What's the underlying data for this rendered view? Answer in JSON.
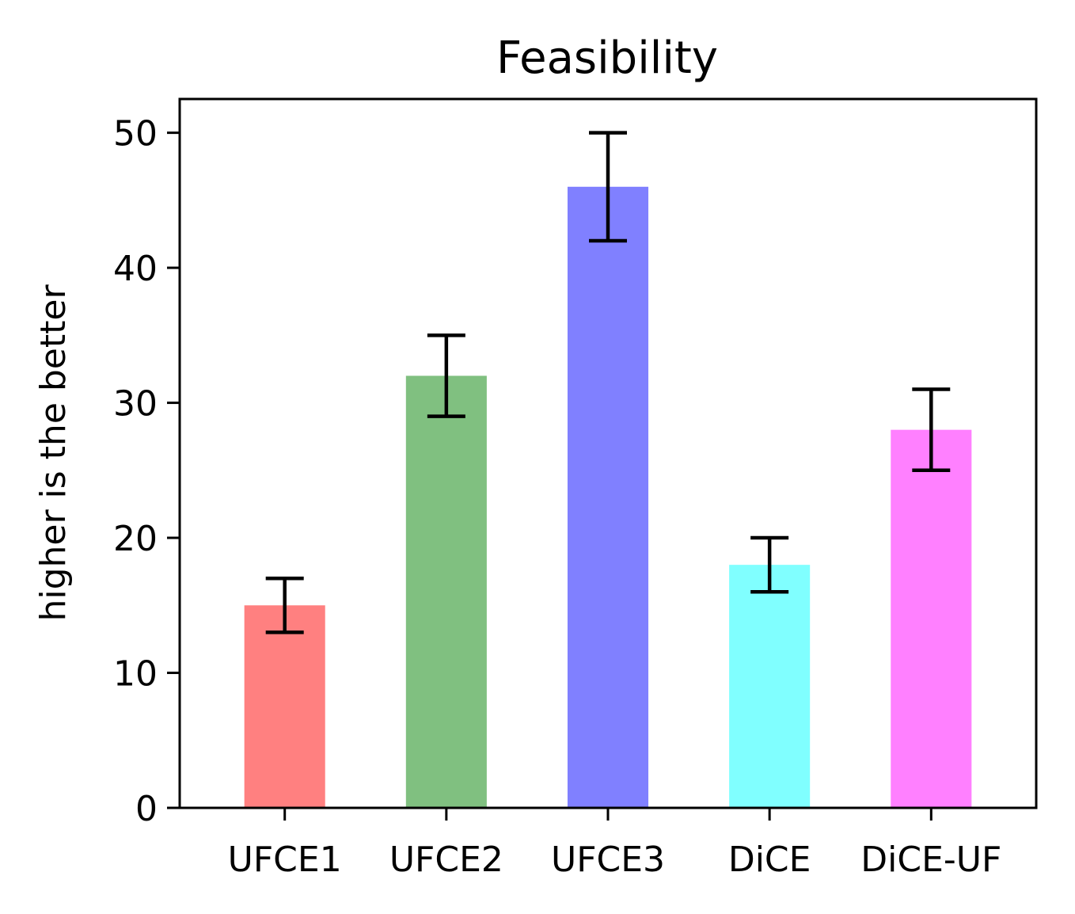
{
  "chart_data": {
    "type": "bar",
    "title": "Feasibility",
    "xlabel": "",
    "ylabel": "higher is the better",
    "categories": [
      "UFCE1",
      "UFCE2",
      "UFCE3",
      "DiCE",
      "DiCE-UF"
    ],
    "values": [
      15,
      32,
      46,
      18,
      28
    ],
    "errors": [
      2,
      3,
      4,
      2,
      3
    ],
    "colors": [
      "#ff8080",
      "#80c080",
      "#8080ff",
      "#80ffff",
      "#ff80ff"
    ],
    "error_color": "#000000",
    "ylim": [
      0,
      52.5
    ],
    "yticks": [
      0,
      10,
      20,
      30,
      40,
      50
    ],
    "grid": false,
    "legend": "none"
  }
}
